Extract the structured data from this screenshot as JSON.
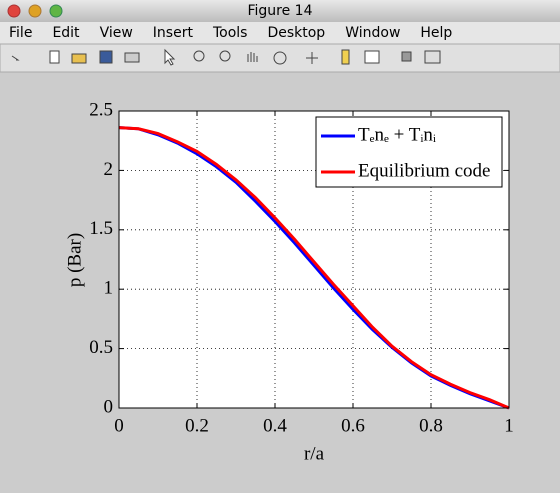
{
  "window": {
    "title": "Figure 14",
    "menu": [
      "File",
      "Edit",
      "View",
      "Insert",
      "Tools",
      "Desktop",
      "Window",
      "Help"
    ]
  },
  "chart_data": {
    "type": "line",
    "x": [
      0,
      0.05,
      0.1,
      0.15,
      0.2,
      0.25,
      0.3,
      0.35,
      0.4,
      0.45,
      0.5,
      0.55,
      0.6,
      0.65,
      0.7,
      0.75,
      0.8,
      0.85,
      0.9,
      0.95,
      1
    ],
    "series": [
      {
        "name": "Tₑnₑ + Tᵢnᵢ",
        "color": "#0000ff",
        "values": [
          2.36,
          2.35,
          2.3,
          2.23,
          2.14,
          2.03,
          1.9,
          1.74,
          1.57,
          1.39,
          1.2,
          1.01,
          0.83,
          0.66,
          0.51,
          0.38,
          0.27,
          0.19,
          0.12,
          0.06,
          0
        ]
      },
      {
        "name": "Equilibrium code",
        "color": "#ff0000",
        "values": [
          2.36,
          2.35,
          2.31,
          2.24,
          2.16,
          2.05,
          1.92,
          1.77,
          1.6,
          1.42,
          1.23,
          1.04,
          0.86,
          0.68,
          0.52,
          0.39,
          0.28,
          0.2,
          0.13,
          0.07,
          0
        ]
      }
    ],
    "xlabel": "r/a",
    "ylabel": "p (Bar)",
    "xlim": [
      0,
      1
    ],
    "ylim": [
      0,
      2.5
    ],
    "xticks": [
      0,
      0.2,
      0.4,
      0.6,
      0.8,
      1
    ],
    "yticks": [
      0,
      0.5,
      1,
      1.5,
      2,
      2.5
    ],
    "grid": true,
    "legend": "upper right"
  }
}
